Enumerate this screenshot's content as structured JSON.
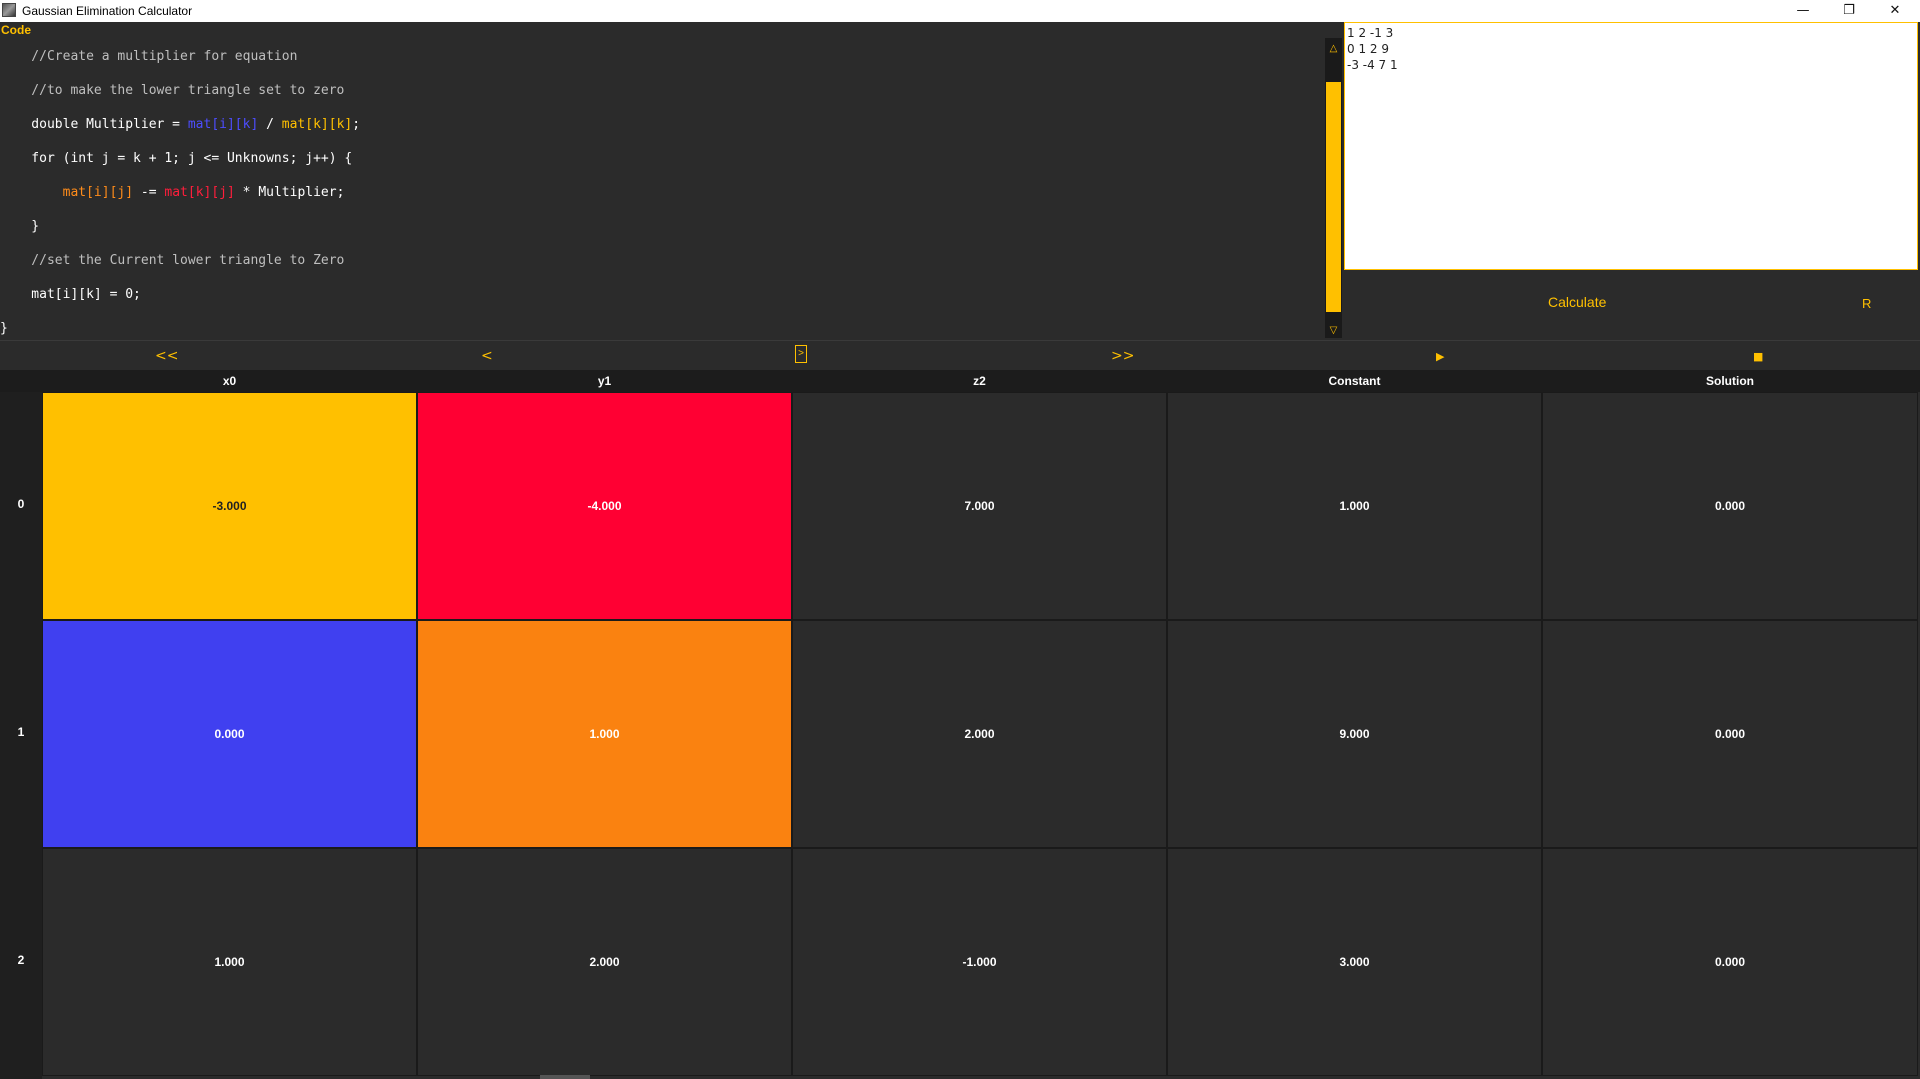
{
  "window": {
    "title": "Gaussian Elimination Calculator",
    "minimize": "—",
    "restore": "❐",
    "close": "✕"
  },
  "code": {
    "header": "Code",
    "lines": [
      "    //Create a multiplier for equation",
      "    //to make the lower triangle set to zero",
      "    double Multiplier = ",
      "    for (int j = k + 1; j <= Unknowns; j++) {",
      "        ",
      "    }",
      "    //set the Current lower triangle to Zero",
      "    mat[i][k] = 0;",
      "}"
    ],
    "multiplier_a": "mat[i][k]",
    "multiplier_op": " / ",
    "multiplier_b": "mat[k][k]",
    "multiplier_end": ";",
    "inner_a": "mat[i][j]",
    "inner_op": " -= ",
    "inner_b": "mat[k][j]",
    "inner_end": " * Multiplier;",
    "scroll_up": "△",
    "scroll_down": "▽"
  },
  "input": {
    "text": "1 2 -1 3\n0 1 2 9\n-3 -4 7 1"
  },
  "buttons": {
    "calculate": "Calculate",
    "reset": "R"
  },
  "controls": {
    "first": "<<",
    "prev": "<",
    "current": ">",
    "next": ">>",
    "play": "▶",
    "stop": "■"
  },
  "table": {
    "columns": [
      "x0",
      "y1",
      "z2",
      "Constant",
      "Solution"
    ],
    "rows": [
      {
        "label": "0",
        "cells": [
          "-3.000",
          "-4.000",
          "7.000",
          "1.000",
          "0.000"
        ]
      },
      {
        "label": "1",
        "cells": [
          "0.000",
          "1.000",
          "2.000",
          "9.000",
          "0.000"
        ]
      },
      {
        "label": "2",
        "cells": [
          "1.000",
          "2.000",
          "-1.000",
          "3.000",
          "0.000"
        ]
      }
    ]
  },
  "colors": {
    "accent": "#ffc000",
    "highlight_yellow": "#ffc000",
    "highlight_red": "#ff0033",
    "highlight_blue": "#4040f0",
    "highlight_orange": "#fa8210",
    "background": "#2b2b2b"
  }
}
